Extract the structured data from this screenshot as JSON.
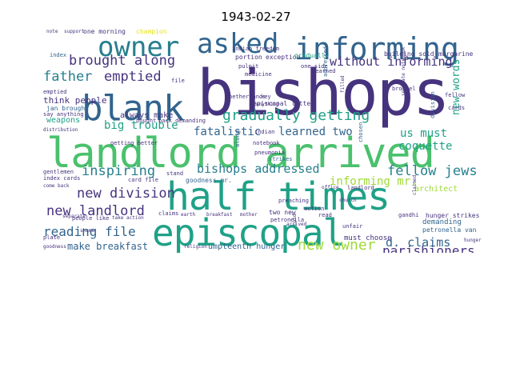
{
  "title": "1943-02-27",
  "colors": {
    "dark_purple": "#46337e",
    "teal": "#32648e",
    "cyan": "#277f8e",
    "blue_green": "#1fa187",
    "green": "#4ac16d",
    "light_green": "#a0da39",
    "yellow": "#e4e419",
    "deep_purple": "#440154"
  },
  "words": [
    {
      "text": "bishops",
      "color": "dark_purple"
    },
    {
      "text": "landlord arrived",
      "color": "green"
    },
    {
      "text": "half times",
      "color": "blue_green"
    },
    {
      "text": "episcopal",
      "color": "blue_green"
    },
    {
      "text": "blank",
      "color": "teal"
    },
    {
      "text": "informing",
      "color": "teal"
    },
    {
      "text": "owner",
      "color": "cyan"
    },
    {
      "text": "asked",
      "color": "teal"
    },
    {
      "text": "brought along",
      "color": "dark_purple"
    },
    {
      "text": "father",
      "color": "cyan"
    },
    {
      "text": "emptied",
      "color": "dark_purple"
    },
    {
      "text": "without informing",
      "color": "dark_purple"
    },
    {
      "text": "gradually getting",
      "color": "blue_green"
    },
    {
      "text": "inspiring",
      "color": "cyan"
    },
    {
      "text": "bishops addressed",
      "color": "cyan"
    },
    {
      "text": "fellow jews",
      "color": "cyan"
    },
    {
      "text": "new division",
      "color": "dark_purple"
    },
    {
      "text": "new landlord",
      "color": "dark_purple"
    },
    {
      "text": "reading file",
      "color": "teal"
    },
    {
      "text": "parishioners",
      "color": "dark_purple"
    },
    {
      "text": "new owner",
      "color": "light_green"
    },
    {
      "text": "d. claims",
      "color": "teal"
    },
    {
      "text": "learned two",
      "color": "teal"
    },
    {
      "text": "fatalistic",
      "color": "teal"
    },
    {
      "text": "big trouble",
      "color": "blue_green"
    },
    {
      "text": "coquette",
      "color": "blue_green"
    },
    {
      "text": "us must",
      "color": "blue_green"
    },
    {
      "text": "new words",
      "color": "blue_green"
    },
    {
      "text": "informing mr.",
      "color": "light_green"
    },
    {
      "text": "make breakfast",
      "color": "teal"
    },
    {
      "text": "umpteenth hunger",
      "color": "teal"
    },
    {
      "text": "think people",
      "color": "dark_purple"
    },
    {
      "text": "always make",
      "color": "dark_purple"
    },
    {
      "text": "weapons",
      "color": "blue_green"
    },
    {
      "text": "jan brought",
      "color": "teal"
    },
    {
      "text": "episcopal letter",
      "color": "dark_purple"
    },
    {
      "text": "must choose",
      "color": "dark_purple"
    },
    {
      "text": "demanding",
      "color": "teal"
    },
    {
      "text": "architect",
      "color": "light_green"
    },
    {
      "text": "petronella van",
      "color": "teal"
    },
    {
      "text": "hunger strikes",
      "color": "dark_purple"
    },
    {
      "text": "building sold",
      "color": "dark_purple"
    },
    {
      "text": "margarine",
      "color": "dark_purple"
    },
    {
      "text": "one morning",
      "color": "dark_purple"
    },
    {
      "text": "champion",
      "color": "yellow"
    },
    {
      "text": "portion",
      "color": "dark_purple"
    },
    {
      "text": "exception",
      "color": "dark_purple"
    },
    {
      "text": "gradually",
      "color": "blue_green"
    },
    {
      "text": "one side",
      "color": "dark_purple"
    },
    {
      "text": "learned",
      "color": "dark_purple"
    },
    {
      "text": "medicine",
      "color": "dark_purple"
    },
    {
      "text": "netherlands",
      "color": "dark_purple"
    },
    {
      "text": "pneumonia",
      "color": "dark_purple"
    },
    {
      "text": "notebook",
      "color": "dark_purple"
    },
    {
      "text": "strikes",
      "color": "teal"
    },
    {
      "text": "stand",
      "color": "dark_purple"
    },
    {
      "text": "claims",
      "color": "dark_purple"
    },
    {
      "text": "two new",
      "color": "dark_purple"
    },
    {
      "text": "preaching",
      "color": "dark_purple"
    },
    {
      "text": "action",
      "color": "dark_purple"
    },
    {
      "text": "read",
      "color": "dark_purple"
    },
    {
      "text": "unfair",
      "color": "dark_purple"
    },
    {
      "text": "gandhi",
      "color": "dark_purple"
    },
    {
      "text": "petronella",
      "color": "dark_purple"
    },
    {
      "text": "fellow",
      "color": "dark_purple"
    },
    {
      "text": "cards",
      "color": "dark_purple"
    },
    {
      "text": "key",
      "color": "dark_purple"
    },
    {
      "text": "index",
      "color": "teal"
    },
    {
      "text": "index cards",
      "color": "dark_purple"
    },
    {
      "text": "card file",
      "color": "dark_purple"
    },
    {
      "text": "gentlemen",
      "color": "dark_purple"
    },
    {
      "text": "getting better",
      "color": "dark_purple"
    },
    {
      "text": "bought",
      "color": "dark_purple"
    },
    {
      "text": "back demanding",
      "color": "dark_purple"
    },
    {
      "text": "goodness mr.",
      "color": "teal"
    },
    {
      "text": "indian",
      "color": "dark_purple"
    },
    {
      "text": "file",
      "color": "dark_purple"
    },
    {
      "text": "say anything",
      "color": "dark_purple"
    },
    {
      "text": "emptied",
      "color": "dark_purple"
    },
    {
      "text": "plate",
      "color": "dark_purple"
    },
    {
      "text": "shame",
      "color": "dark_purple"
    },
    {
      "text": "pulpit",
      "color": "dark_purple"
    },
    {
      "text": "indian freedom",
      "color": "dark_purple"
    },
    {
      "text": "brothel",
      "color": "dark_purple"
    },
    {
      "text": "landlord",
      "color": "dark_purple"
    },
    {
      "text": "separate notebook",
      "color": "dark_purple"
    },
    {
      "text": "addressed",
      "color": "teal"
    },
    {
      "text": "division",
      "color": "teal"
    },
    {
      "text": "chosen",
      "color": "teal"
    },
    {
      "text": "along",
      "color": "teal"
    },
    {
      "text": "distribution",
      "color": "dark_purple"
    },
    {
      "text": "separate",
      "color": "dark_purple"
    },
    {
      "text": "people like",
      "color": "dark_purple"
    },
    {
      "text": "take action",
      "color": "dark_purple"
    },
    {
      "text": "note",
      "color": "dark_purple"
    },
    {
      "text": "support",
      "color": "dark_purple"
    },
    {
      "text": "filled",
      "color": "dark_purple"
    },
    {
      "text": "card",
      "color": "dark_purple"
    },
    {
      "text": "claimed",
      "color": "dark_purple"
    },
    {
      "text": "come back",
      "color": "dark_purple"
    },
    {
      "text": "hunger",
      "color": "dark_purple"
    },
    {
      "text": "arrived",
      "color": "dark_purple"
    },
    {
      "text": "goodness",
      "color": "dark_purple"
    },
    {
      "text": "church",
      "color": "dark_purple"
    },
    {
      "text": "office",
      "color": "dark_purple"
    },
    {
      "text": "religion",
      "color": "dark_purple"
    },
    {
      "text": "anything",
      "color": "dark_purple"
    },
    {
      "text": "breakfast",
      "color": "dark_purple"
    },
    {
      "text": "mother",
      "color": "dark_purple"
    },
    {
      "text": "earth",
      "color": "dark_purple"
    }
  ]
}
